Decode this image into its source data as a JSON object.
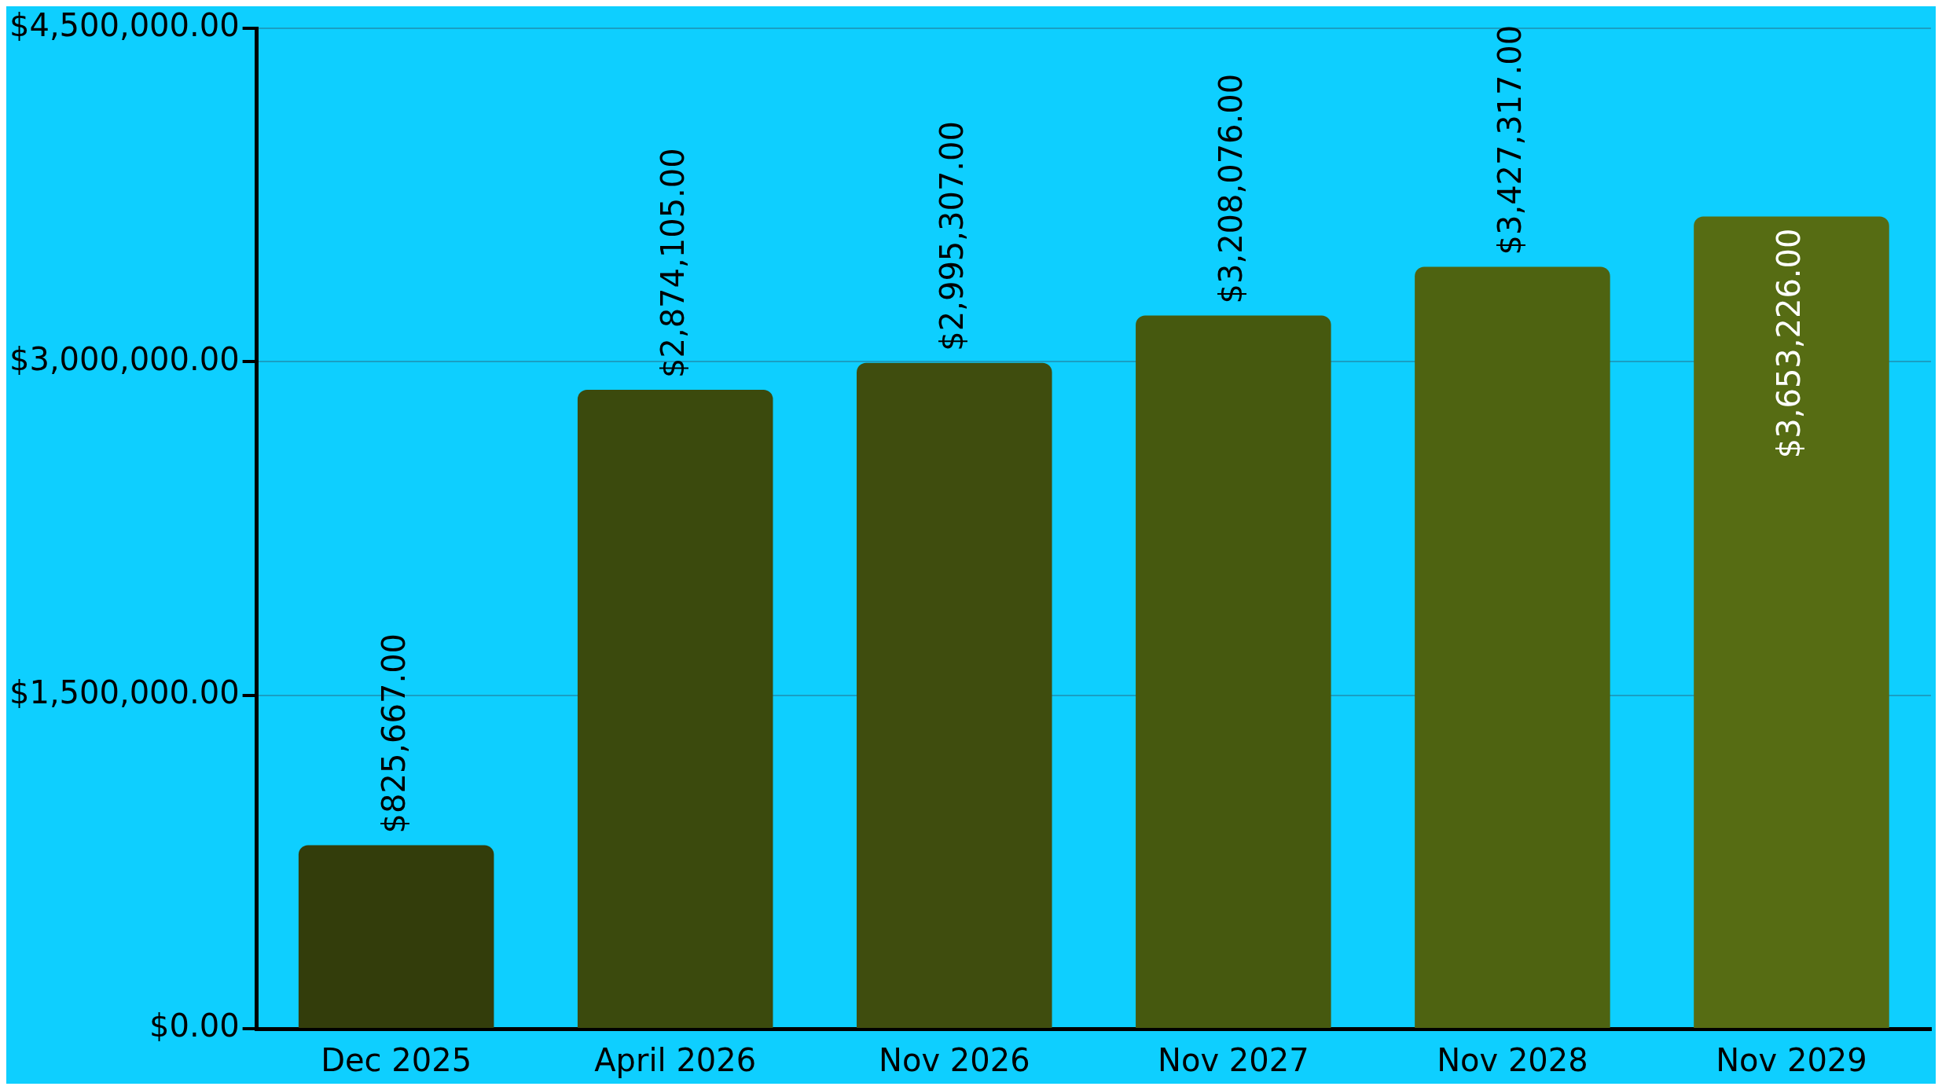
{
  "chart_data": {
    "type": "bar",
    "categories": [
      "Dec 2025",
      "April 2026",
      "Nov 2026",
      "Nov 2027",
      "Nov 2028",
      "Nov 2029"
    ],
    "values": [
      825667,
      2874105,
      2995307,
      3208076,
      3427317,
      3653226
    ],
    "colors": [
      "#333d0b",
      "#3b4a0d",
      "#3f4d0e",
      "#46590f",
      "#4e6311",
      "#566c13"
    ],
    "value_labels": [
      "$825,667.00",
      "$2,874,105.00",
      "$2,995,307.00",
      "$3,208,076.00",
      "$3,427,317.00",
      "$3,653,226.00"
    ],
    "ylim": [
      0,
      4500000
    ],
    "yticks": [
      {
        "value": 0,
        "label": "$0.00"
      },
      {
        "value": 1500000,
        "label": "$1,500,000.00"
      },
      {
        "value": 3000000,
        "label": "$3,000,000.00"
      },
      {
        "value": 4500000,
        "label": "$4,500,000.00"
      }
    ],
    "grid": "y",
    "legend": false
  }
}
